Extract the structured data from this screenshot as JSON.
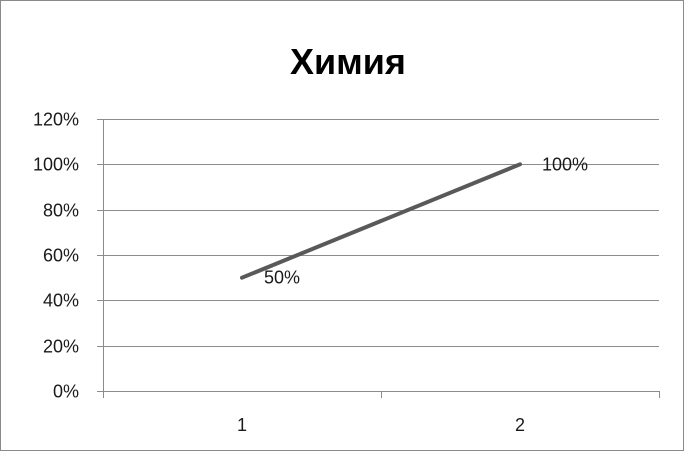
{
  "chart_data": {
    "type": "line",
    "title": "Химия",
    "categories": [
      "1",
      "2"
    ],
    "series": [
      {
        "values": [
          0.5,
          1.0
        ],
        "data_labels": [
          "50%",
          "100%"
        ],
        "color": "#595959"
      }
    ],
    "ylim": [
      0,
      1.2
    ],
    "y_ticks": [
      0,
      0.2,
      0.4,
      0.6,
      0.8,
      1.0,
      1.2
    ],
    "y_tick_labels": [
      "0%",
      "20%",
      "40%",
      "60%",
      "80%",
      "100%",
      "120%"
    ],
    "grid": true,
    "legend": "none",
    "colors": {
      "grid": "#8c8c8c",
      "axis": "#8c8c8c",
      "line": "#595959"
    }
  }
}
